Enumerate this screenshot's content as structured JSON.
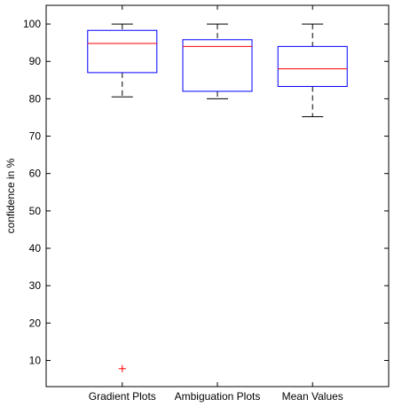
{
  "chart_data": {
    "type": "boxplot",
    "ylabel": "confidence in %",
    "xlabel": "",
    "title": "",
    "ylim": [
      3,
      105
    ],
    "yticks": [
      10,
      20,
      30,
      40,
      50,
      60,
      70,
      80,
      90,
      100
    ],
    "grid": false,
    "categories": [
      "Gradient Plots",
      "Ambiguation Plots",
      "Mean Values"
    ],
    "boxes": [
      {
        "whisker_low": 80.5,
        "q1": 87,
        "median": 94.8,
        "q3": 98.3,
        "whisker_high": 100,
        "outliers": [
          7.8
        ]
      },
      {
        "whisker_low": 80,
        "q1": 82,
        "median": 94,
        "q3": 95.8,
        "whisker_high": 100,
        "outliers": []
      },
      {
        "whisker_low": 75.2,
        "q1": 83.3,
        "median": 88,
        "q3": 94,
        "whisker_high": 100,
        "outliers": []
      }
    ],
    "colors": {
      "box": "#0000ff",
      "median": "#ff0000",
      "whisker": "#000000",
      "outlier": "#ff0000",
      "axes": "#000000"
    }
  }
}
